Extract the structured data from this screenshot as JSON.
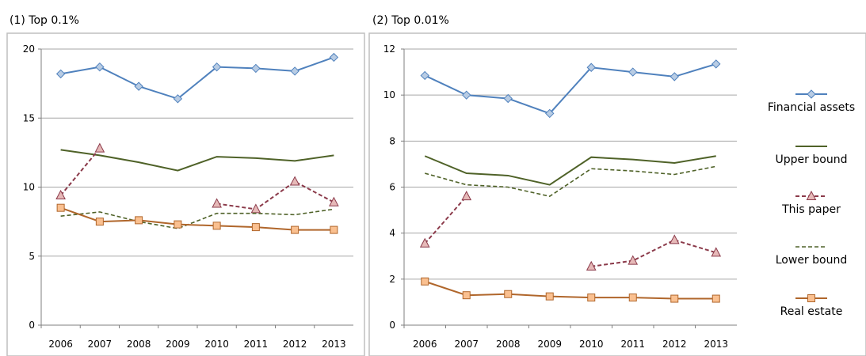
{
  "colors": {
    "financial_assets": "#4f81bd",
    "financial_assets_fill": "#b8cce4",
    "upper_bound": "#4f6228",
    "this_paper": "#8b3a4a",
    "this_paper_fill": "#e6b9b8",
    "lower_bound": "#4f6228",
    "real_estate": "#b0662b",
    "real_estate_fill": "#fac090",
    "gridline": "#a6a6a6",
    "frame": "#bfbfbf"
  },
  "legend": {
    "items": [
      {
        "key": "financial_assets",
        "label": "Financial assets",
        "marker": "diamond",
        "dash": "solid"
      },
      {
        "key": "upper_bound",
        "label": "Upper bound",
        "marker": "none",
        "dash": "solid"
      },
      {
        "key": "this_paper",
        "label": "This paper",
        "marker": "triangle",
        "dash": "dashed"
      },
      {
        "key": "lower_bound",
        "label": "Lower bound",
        "marker": "none",
        "dash": "dashed"
      },
      {
        "key": "real_estate",
        "label": "Real estate",
        "marker": "square",
        "dash": "solid"
      }
    ]
  },
  "chart_data": [
    {
      "type": "line",
      "title": "(1) Top 0.1%",
      "categories": [
        "2006",
        "2007",
        "2008",
        "2009",
        "2010",
        "2011",
        "2012",
        "2013"
      ],
      "ylim": [
        0,
        20
      ],
      "yticks": [
        0,
        5,
        10,
        15,
        20
      ],
      "grid": true,
      "series": [
        {
          "key": "financial_assets",
          "name": "Financial assets",
          "values": [
            18.2,
            18.7,
            17.3,
            16.4,
            18.7,
            18.6,
            18.4,
            19.4
          ]
        },
        {
          "key": "upper_bound",
          "name": "Upper bound",
          "values": [
            12.7,
            12.3,
            11.8,
            11.2,
            12.2,
            12.1,
            11.9,
            12.3
          ]
        },
        {
          "key": "this_paper",
          "name": "This paper",
          "values": [
            9.4,
            12.8,
            null,
            null,
            8.8,
            8.4,
            10.4,
            8.9
          ]
        },
        {
          "key": "lower_bound",
          "name": "Lower bound",
          "values": [
            7.9,
            8.2,
            7.5,
            7.0,
            8.1,
            8.1,
            8.0,
            8.4
          ]
        },
        {
          "key": "real_estate",
          "name": "Real estate",
          "values": [
            8.5,
            7.5,
            7.6,
            7.3,
            7.2,
            7.1,
            6.9,
            6.9
          ]
        }
      ]
    },
    {
      "type": "line",
      "title": "(2) Top 0.01%",
      "categories": [
        "2006",
        "2007",
        "2008",
        "2009",
        "2010",
        "2011",
        "2012",
        "2013"
      ],
      "ylim": [
        0,
        12
      ],
      "yticks": [
        0,
        2,
        4,
        6,
        8,
        10,
        12
      ],
      "grid": true,
      "series": [
        {
          "key": "financial_assets",
          "name": "Financial assets",
          "values": [
            10.85,
            10.0,
            9.85,
            9.2,
            11.2,
            11.0,
            10.8,
            11.35
          ]
        },
        {
          "key": "upper_bound",
          "name": "Upper bound",
          "values": [
            7.35,
            6.6,
            6.5,
            6.1,
            7.3,
            7.2,
            7.05,
            7.35
          ]
        },
        {
          "key": "this_paper",
          "name": "This paper",
          "values": [
            3.55,
            5.6,
            null,
            null,
            2.55,
            2.8,
            3.7,
            3.15
          ]
        },
        {
          "key": "lower_bound",
          "name": "Lower bound",
          "values": [
            6.6,
            6.1,
            6.0,
            5.6,
            6.8,
            6.7,
            6.55,
            6.9
          ]
        },
        {
          "key": "real_estate",
          "name": "Real estate",
          "values": [
            1.9,
            1.3,
            1.35,
            1.25,
            1.2,
            1.2,
            1.15,
            1.15
          ]
        }
      ]
    }
  ]
}
